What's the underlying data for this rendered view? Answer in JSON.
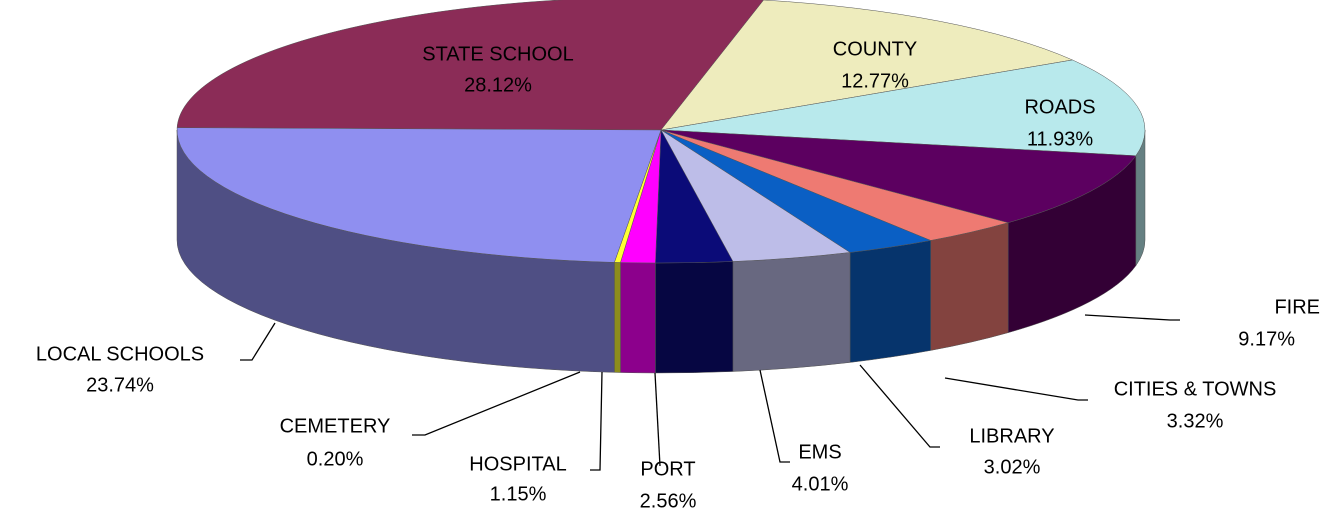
{
  "chart_data": {
    "type": "pie3d",
    "categories": [
      "STATE SCHOOL",
      "COUNTY",
      "ROADS",
      "FIRE",
      "CITIES & TOWNS",
      "LIBRARY",
      "EMS",
      "PORT",
      "HOSPITAL",
      "CEMETERY",
      "LOCAL SCHOOLS"
    ],
    "values": [
      28.12,
      12.77,
      11.93,
      9.17,
      3.32,
      3.02,
      4.01,
      2.56,
      1.15,
      0.2,
      23.74
    ],
    "value_labels": [
      "28.12%",
      "12.77%",
      "11.93%",
      "9.17%",
      "3.32%",
      "3.02%",
      "4.01%",
      "2.56%",
      "1.15%",
      "0.20%",
      "23.74%"
    ],
    "colors": [
      "#8b2c57",
      "#eeecbd",
      "#b8e9ec",
      "#5c0060",
      "#ee7a72",
      "#0a5fc4",
      "#bdbde8",
      "#0b0b78",
      "#ff00ff",
      "#ffff33",
      "#8f8ff0"
    ]
  }
}
